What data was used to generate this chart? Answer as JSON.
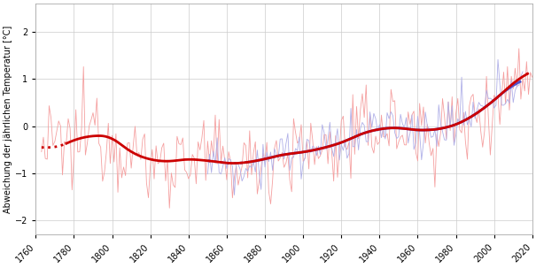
{
  "title": "",
  "ylabel": "Abweichung der jährlichen Temperatur [°C]",
  "xlim": [
    1760,
    2020
  ],
  "ylim": [
    -2.3,
    2.6
  ],
  "yticks": [
    -2,
    -1,
    0,
    1,
    2
  ],
  "xticks": [
    1760,
    1780,
    1800,
    1820,
    1840,
    1860,
    1880,
    1900,
    1920,
    1940,
    1960,
    1980,
    2000,
    2020
  ],
  "color_thin_red": "#f5a0a0",
  "color_thick_red": "#cc0000",
  "color_thin_blue": "#b0b0e8",
  "color_thick_blue": "#5050c8",
  "bg_color": "#ffffff",
  "grid_color": "#cccccc",
  "red_start_year": 1763,
  "blue_start_year": 1850,
  "red_dot_end": 1776,
  "red_solid_end": 2017,
  "blue_dot_end": 1870,
  "blue_solid_end": 2013,
  "smooth_window": 13
}
